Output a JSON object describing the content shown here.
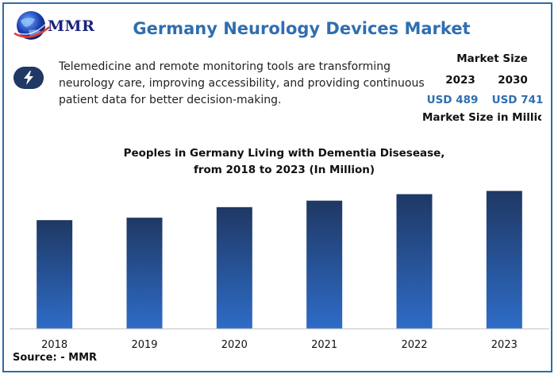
{
  "brand": {
    "logo_text": "MMR"
  },
  "header": {
    "title": "Germany Neurology Devices Market"
  },
  "insight": {
    "icon": "lightning-bolt-icon",
    "text": "Telemedicine and remote monitoring tools are transforming neurology care, improving accessibility, and providing continuous patient data for better decision-making."
  },
  "market_size": {
    "title": "Market Size",
    "years": [
      "2023",
      "2030"
    ],
    "values": [
      "USD 489",
      "USD 741"
    ],
    "unit_label": "Market Size in Million"
  },
  "colors": {
    "title_blue": "#2f6eb0",
    "bar_top": "#1f3864",
    "bar_bottom": "#2e6cc7",
    "border": "#2f6aa8"
  },
  "chart_data": {
    "type": "bar",
    "title": "Peoples in Germany Living with Dementia Disesease, from 2018 to 2023 (In Million)",
    "title_lines": [
      "Peoples in Germany Living with Dementia Disesease,",
      "from 2018 to 2023 (In Million)"
    ],
    "categories": [
      "2018",
      "2019",
      "2020",
      "2021",
      "2022",
      "2023"
    ],
    "values": [
      1.34,
      1.37,
      1.5,
      1.58,
      1.66,
      1.7
    ],
    "ylim": [
      0,
      1.9
    ],
    "xlabel": "",
    "ylabel": "",
    "grid": false,
    "legend": "none"
  },
  "footer": {
    "source": "Source: - MMR"
  }
}
